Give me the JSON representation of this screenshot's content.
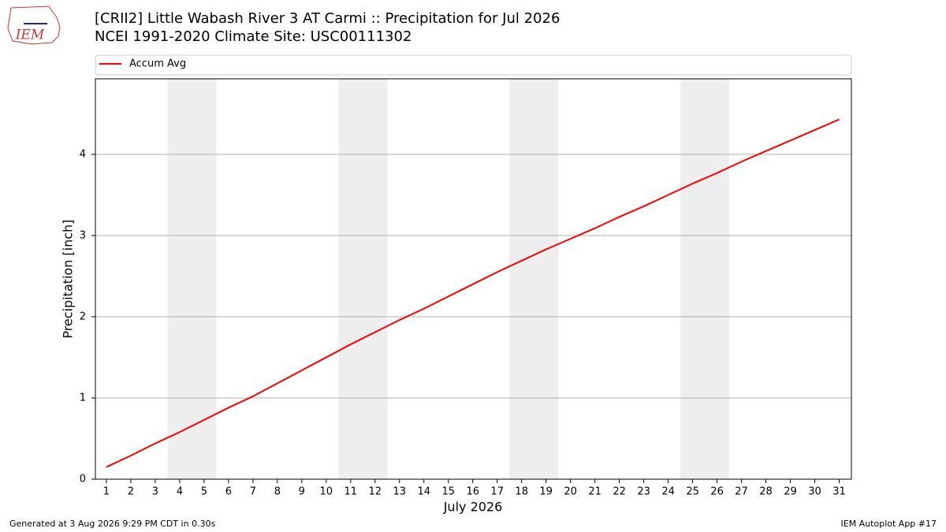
{
  "logo_text": "IEM",
  "footer": {
    "left": "Generated at 3 Aug 2026 9:29 PM CDT in 0.30s",
    "right": "IEM Autoplot App #17"
  },
  "chart_data": {
    "type": "line",
    "title": "[CRII2] Little Wabash River 3 AT Carmi :: Precipitation for Jul 2026",
    "subtitle": "NCEI 1991-2020 Climate Site: USC00111302",
    "x_label": "July 2026",
    "y_label": "Precipitation [inch]",
    "x": [
      1,
      2,
      3,
      4,
      5,
      6,
      7,
      8,
      9,
      10,
      11,
      12,
      13,
      14,
      15,
      16,
      17,
      18,
      19,
      20,
      21,
      22,
      23,
      24,
      25,
      26,
      27,
      28,
      29,
      30,
      31
    ],
    "series": [
      {
        "name": "Accum Avg",
        "color": "#ff0000",
        "values": [
          0.15,
          0.29,
          0.44,
          0.58,
          0.73,
          0.88,
          1.02,
          1.18,
          1.34,
          1.5,
          1.66,
          1.81,
          1.96,
          2.1,
          2.25,
          2.4,
          2.55,
          2.69,
          2.83,
          2.96,
          3.09,
          3.23,
          3.36,
          3.5,
          3.64,
          3.77,
          3.91,
          4.04,
          4.17,
          4.3,
          4.43
        ]
      }
    ],
    "xlim": [
      0.55,
      31.5
    ],
    "ylim": [
      0,
      4.93
    ],
    "xticks": [
      1,
      2,
      3,
      4,
      5,
      6,
      7,
      8,
      9,
      10,
      11,
      12,
      13,
      14,
      15,
      16,
      17,
      18,
      19,
      20,
      21,
      22,
      23,
      24,
      25,
      26,
      27,
      28,
      29,
      30,
      31
    ],
    "yticks": [
      0,
      1,
      2,
      3,
      4
    ],
    "shaded_spans": [
      [
        3.5,
        5.5
      ],
      [
        10.5,
        12.5
      ],
      [
        17.5,
        19.5
      ],
      [
        24.5,
        26.5
      ]
    ],
    "shade_color": "#eeeeee",
    "grid": "y",
    "legend": "top"
  }
}
